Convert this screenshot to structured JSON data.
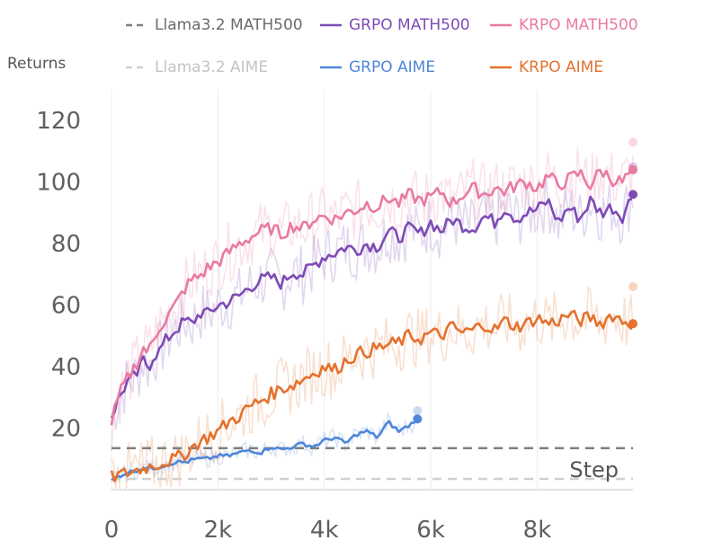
{
  "chart_data": {
    "type": "line",
    "ylabel": "Returns",
    "xlabel": "Step",
    "xlim": [
      0,
      9800
    ],
    "ylim": [
      0,
      130
    ],
    "xticks": [
      0,
      2000,
      4000,
      6000,
      8000
    ],
    "xtick_labels": [
      "0",
      "2k",
      "4k",
      "6k",
      "8k"
    ],
    "yticks": [
      20,
      40,
      60,
      80,
      100,
      120
    ],
    "ytick_labels": [
      "20",
      "40",
      "60",
      "80",
      "100",
      "120"
    ],
    "legend_position": "top",
    "series": [
      {
        "name": "Llama3.2 MATH500",
        "style": "dashed",
        "color": "#7f7f7f",
        "x": [
          0,
          9800
        ],
        "values": [
          13.5,
          13.5
        ]
      },
      {
        "name": "Llama3.2 AIME",
        "style": "dashed",
        "color": "#d0d0d0",
        "x": [
          0,
          9800
        ],
        "values": [
          3.5,
          3.5
        ]
      },
      {
        "name": "GRPO MATH500",
        "style": "solid",
        "color": "#7d4bb5",
        "x": [
          0,
          100,
          200,
          300,
          400,
          500,
          600,
          700,
          800,
          900,
          1000,
          1200,
          1400,
          1500,
          1700,
          1800,
          2000,
          2200,
          2400,
          2600,
          2800,
          3000,
          3200,
          3400,
          3600,
          3800,
          4000,
          4200,
          4400,
          4600,
          4800,
          5000,
          5200,
          5400,
          5600,
          5800,
          6000,
          6200,
          6400,
          6600,
          6800,
          7000,
          7200,
          7400,
          7600,
          7800,
          8000,
          8200,
          8400,
          8600,
          8800,
          9000,
          9200,
          9400,
          9600,
          9800
        ],
        "values": [
          24,
          28,
          32,
          35,
          36,
          38,
          42,
          40,
          44,
          45,
          48,
          52,
          55,
          54,
          58,
          57,
          60,
          61,
          63,
          66,
          68,
          69,
          67,
          71,
          70,
          73,
          76,
          77,
          79,
          78,
          80,
          79,
          84,
          82,
          85,
          83,
          87,
          84,
          88,
          86,
          85,
          89,
          87,
          92,
          88,
          90,
          91,
          94,
          87,
          92,
          88,
          94,
          90,
          92,
          89,
          96
        ]
      },
      {
        "name": "KRPO MATH500",
        "style": "solid",
        "color": "#e97aa2",
        "x": [
          0,
          100,
          200,
          300,
          400,
          500,
          600,
          700,
          800,
          900,
          1000,
          1200,
          1400,
          1500,
          1700,
          1800,
          2000,
          2200,
          2400,
          2600,
          2800,
          3000,
          3200,
          3400,
          3600,
          3800,
          4000,
          4200,
          4400,
          4600,
          4800,
          5000,
          5200,
          5400,
          5600,
          5800,
          6000,
          6200,
          6400,
          6600,
          6800,
          7000,
          7200,
          7400,
          7600,
          7800,
          8000,
          8200,
          8400,
          8600,
          8800,
          9000,
          9200,
          9400,
          9600,
          9800
        ],
        "values": [
          22,
          28,
          33,
          36,
          39,
          42,
          46,
          45,
          49,
          53,
          55,
          60,
          66,
          68,
          70,
          72,
          74,
          77,
          80,
          82,
          84,
          85,
          83,
          86,
          85,
          88,
          89,
          88,
          90,
          91,
          93,
          92,
          95,
          93,
          96,
          94,
          95,
          97,
          93,
          96,
          98,
          96,
          98,
          97,
          99,
          100,
          98,
          102,
          99,
          101,
          103,
          99,
          104,
          101,
          100,
          104
        ]
      },
      {
        "name": "GRPO AIME",
        "style": "solid",
        "color": "#4f86d8",
        "x": [
          0,
          200,
          400,
          600,
          800,
          1000,
          1200,
          1400,
          1600,
          1800,
          2000,
          2200,
          2400,
          2600,
          2800,
          3000,
          3200,
          3400,
          3600,
          3800,
          4000,
          4200,
          4400,
          4600,
          4800,
          5000,
          5200,
          5400,
          5600,
          5750
        ],
        "values": [
          3,
          5,
          6,
          7,
          7,
          8,
          9,
          9,
          10,
          10,
          11,
          11,
          12,
          13,
          12,
          14,
          13,
          14,
          15,
          14,
          16,
          17,
          15,
          18,
          19,
          17,
          22,
          19,
          21,
          23
        ]
      },
      {
        "name": "KRPO AIME",
        "style": "solid",
        "color": "#e4712e",
        "x": [
          0,
          200,
          400,
          600,
          800,
          1000,
          1200,
          1400,
          1600,
          1800,
          2000,
          2200,
          2400,
          2600,
          2800,
          3000,
          3200,
          3400,
          3600,
          3800,
          4000,
          4200,
          4400,
          4600,
          4800,
          5000,
          5200,
          5400,
          5600,
          5800,
          6000,
          6200,
          6400,
          6600,
          6800,
          7000,
          7200,
          7400,
          7600,
          7800,
          8000,
          8200,
          8400,
          8600,
          8800,
          9000,
          9200,
          9400,
          9600,
          9800
        ],
        "values": [
          4,
          5,
          6,
          7,
          8,
          9,
          10,
          12,
          15,
          17,
          19,
          22,
          24,
          27,
          29,
          31,
          33,
          34,
          36,
          38,
          40,
          39,
          42,
          44,
          45,
          46,
          47,
          48,
          50,
          49,
          51,
          50,
          53,
          51,
          52,
          54,
          52,
          55,
          53,
          54,
          56,
          54,
          55,
          57,
          55,
          56,
          54,
          57,
          55,
          54
        ]
      }
    ],
    "noise_amplitude": [
      3,
      3,
      10,
      10,
      3,
      10
    ]
  }
}
